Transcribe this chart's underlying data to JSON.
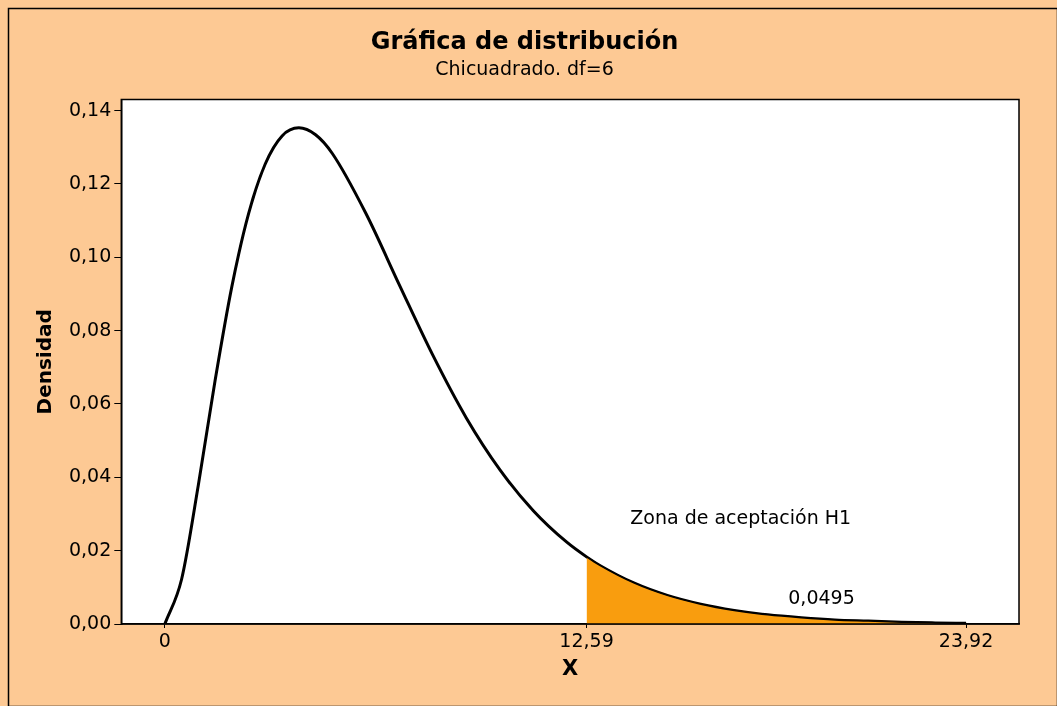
{
  "chart_data": {
    "type": "line",
    "title": "Gráfica de distribución",
    "subtitle": "Chicuadrado. df=6",
    "xlabel": "X",
    "ylabel": "Densidad",
    "xlim": [
      -1.3,
      25.5
    ],
    "xticks": [
      0,
      {
        "value": 12.59,
        "label": "12,59"
      },
      {
        "value": 23.92,
        "label": "23,92"
      }
    ],
    "ylim": [
      0,
      0.143
    ],
    "yticks": [
      {
        "value": 0,
        "label": "0,00"
      },
      {
        "value": 0.02,
        "label": "0,02"
      },
      {
        "value": 0.04,
        "label": "0,04"
      },
      {
        "value": 0.06,
        "label": "0,06"
      },
      {
        "value": 0.08,
        "label": "0,08"
      },
      {
        "value": 0.1,
        "label": "0,10"
      },
      {
        "value": 0.12,
        "label": "0,12"
      },
      {
        "value": 0.14,
        "label": "0,14"
      }
    ],
    "series": [
      {
        "type": "area",
        "color": "#f99d0e",
        "x": [
          12.59,
          13,
          14,
          15,
          16,
          17,
          18,
          19,
          20,
          21,
          22,
          23,
          23.92
        ],
        "values": [
          0.0183,
          0.0159,
          0.0112,
          0.0078,
          0.0054,
          0.0037,
          0.0025,
          0.0017,
          0.0011,
          0.0008,
          0.0005,
          0.0003,
          0.0002
        ]
      },
      {
        "color": "#000000",
        "x": [
          0,
          0.5,
          1,
          1.5,
          2,
          2.5,
          3,
          3.5,
          4,
          4.5,
          5,
          6,
          7,
          8,
          9,
          10,
          11,
          12,
          12.59,
          13,
          14,
          15,
          16,
          17,
          18,
          19,
          20,
          21,
          22,
          23,
          23.92
        ],
        "values": [
          0,
          0.0122,
          0.0379,
          0.0664,
          0.092,
          0.1119,
          0.1255,
          0.1331,
          0.1353,
          0.1334,
          0.1283,
          0.112,
          0.0925,
          0.0733,
          0.0562,
          0.0421,
          0.0309,
          0.0223,
          0.0183,
          0.0159,
          0.0112,
          0.0078,
          0.0054,
          0.0037,
          0.0025,
          0.0017,
          0.0011,
          0.0008,
          0.0005,
          0.0003,
          0.0002
        ]
      }
    ],
    "annotations": [
      "Zona de aceptación H1",
      "0,0495"
    ],
    "grid": false,
    "legend": false,
    "marker": "none",
    "line_style": "solid"
  }
}
